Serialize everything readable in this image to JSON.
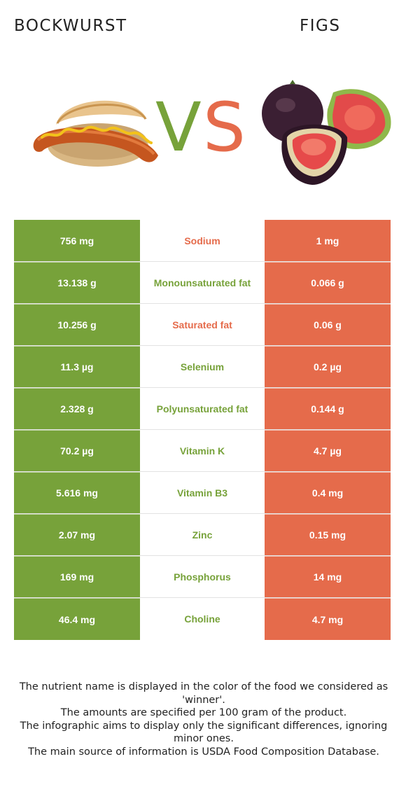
{
  "header": {
    "left_title": "BOCKWURST",
    "right_title": "FIGS",
    "vs_v": "V",
    "vs_s": "S"
  },
  "colors": {
    "green": "#77a23a",
    "orange": "#e56b4b",
    "grey_border": "#e2e2e2"
  },
  "images": {
    "left": "bockwurst-in-bun-image",
    "right": "figs-image"
  },
  "rows": [
    {
      "left": "756 mg",
      "nutrient": "Sodium",
      "right": "1 mg",
      "winner": "right"
    },
    {
      "left": "13.138 g",
      "nutrient": "Monounsaturated fat",
      "right": "0.066 g",
      "winner": "left"
    },
    {
      "left": "10.256 g",
      "nutrient": "Saturated fat",
      "right": "0.06 g",
      "winner": "right"
    },
    {
      "left": "11.3 µg",
      "nutrient": "Selenium",
      "right": "0.2 µg",
      "winner": "left"
    },
    {
      "left": "2.328 g",
      "nutrient": "Polyunsaturated fat",
      "right": "0.144 g",
      "winner": "left"
    },
    {
      "left": "70.2 µg",
      "nutrient": "Vitamin K",
      "right": "4.7 µg",
      "winner": "left"
    },
    {
      "left": "5.616 mg",
      "nutrient": "Vitamin B3",
      "right": "0.4 mg",
      "winner": "left"
    },
    {
      "left": "2.07 mg",
      "nutrient": "Zinc",
      "right": "0.15 mg",
      "winner": "left"
    },
    {
      "left": "169 mg",
      "nutrient": "Phosphorus",
      "right": "14 mg",
      "winner": "left"
    },
    {
      "left": "46.4 mg",
      "nutrient": "Choline",
      "right": "4.7 mg",
      "winner": "left"
    }
  ],
  "notes": [
    "The nutrient name is displayed in the color of the food we considered as 'winner'.",
    "The amounts are specified per 100 gram of the product.",
    "The infographic aims to display only the significant differences, ignoring minor ones.",
    "The main source of information is USDA Food Composition Database."
  ]
}
